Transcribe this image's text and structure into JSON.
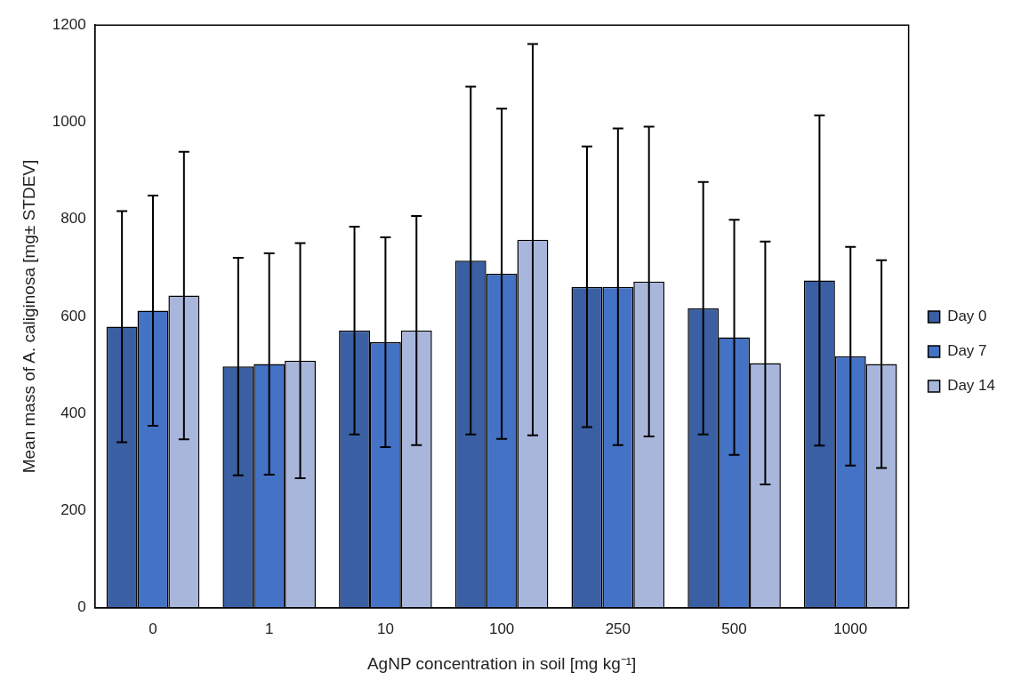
{
  "chart_data": {
    "type": "bar",
    "xlabel": "AgNP concentration in soil [mg kg⁻¹]",
    "ylabel": "Mean mass of A. caliginosa [mg± STDEV]",
    "categories": [
      "0",
      "1",
      "10",
      "100",
      "250",
      "500",
      "1000"
    ],
    "series": [
      {
        "name": "Day 0",
        "color": "#3a5fa3",
        "values": [
          579,
          497,
          571,
          715,
          661,
          617,
          674
        ],
        "errors": [
          238,
          224,
          214,
          358,
          289,
          260,
          340
        ]
      },
      {
        "name": "Day 7",
        "color": "#4472c4",
        "values": [
          612,
          502,
          547,
          688,
          661,
          557,
          518
        ],
        "errors": [
          237,
          228,
          216,
          340,
          326,
          242,
          225
        ]
      },
      {
        "name": "Day 14",
        "color": "#a9b6dc",
        "values": [
          643,
          509,
          571,
          758,
          672,
          504,
          502
        ],
        "errors": [
          296,
          242,
          236,
          403,
          319,
          250,
          214
        ]
      }
    ],
    "ylim": [
      0,
      1200
    ],
    "yticks": [
      0,
      200,
      400,
      600,
      800,
      1000,
      1200
    ],
    "legend": "right"
  }
}
